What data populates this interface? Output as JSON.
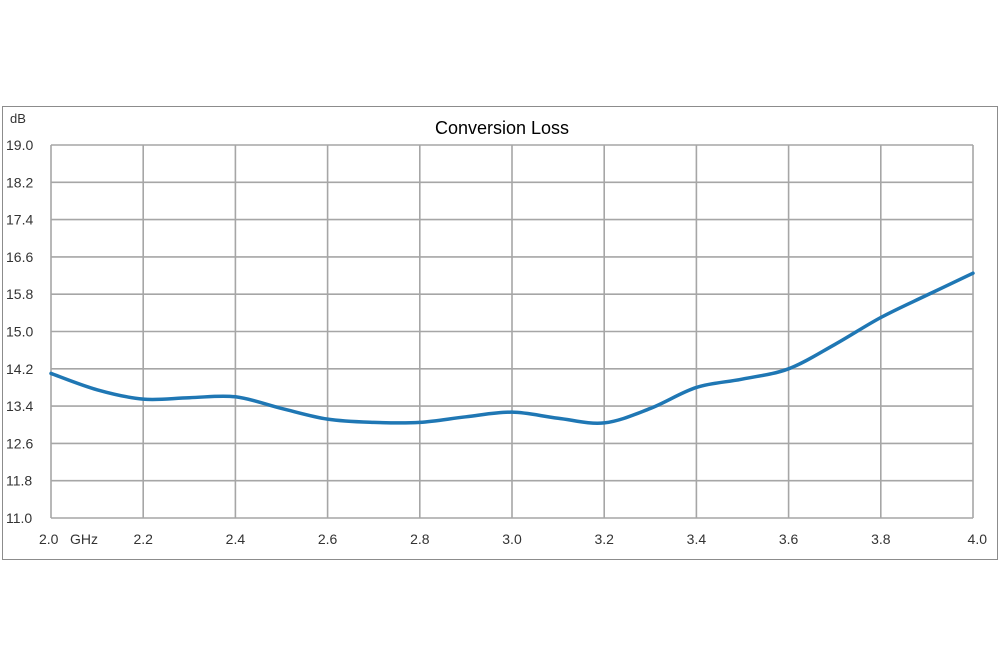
{
  "chart_data": {
    "type": "line",
    "title": "Conversion Loss",
    "ylabel": "dB",
    "x_unit": "GHz",
    "xlim": [
      2.0,
      4.0
    ],
    "ylim": [
      11.0,
      19.0
    ],
    "x_ticks": [
      "2.0",
      "2.2",
      "2.4",
      "2.6",
      "2.8",
      "3.0",
      "3.2",
      "3.4",
      "3.6",
      "3.8",
      "4.0"
    ],
    "y_ticks": [
      "19.0",
      "18.2",
      "17.4",
      "16.6",
      "15.8",
      "15.0",
      "14.2",
      "13.4",
      "12.6",
      "11.8",
      "11.0"
    ],
    "grid": true,
    "colors": {
      "series": "#1f77b4",
      "grid": "#a6a6a6",
      "frame": "#8c8c8c"
    },
    "series": [
      {
        "x": [
          2.0,
          2.1,
          2.2,
          2.3,
          2.4,
          2.5,
          2.6,
          2.7,
          2.8,
          2.9,
          3.0,
          3.1,
          3.2,
          3.3,
          3.4,
          3.5,
          3.6,
          3.7,
          3.8,
          3.9,
          4.0
        ],
        "values": [
          14.1,
          13.75,
          13.55,
          13.58,
          13.6,
          13.35,
          13.12,
          13.05,
          13.05,
          13.17,
          13.27,
          13.14,
          13.04,
          13.35,
          13.8,
          13.98,
          14.2,
          14.72,
          15.3,
          15.78,
          16.25
        ]
      }
    ]
  }
}
